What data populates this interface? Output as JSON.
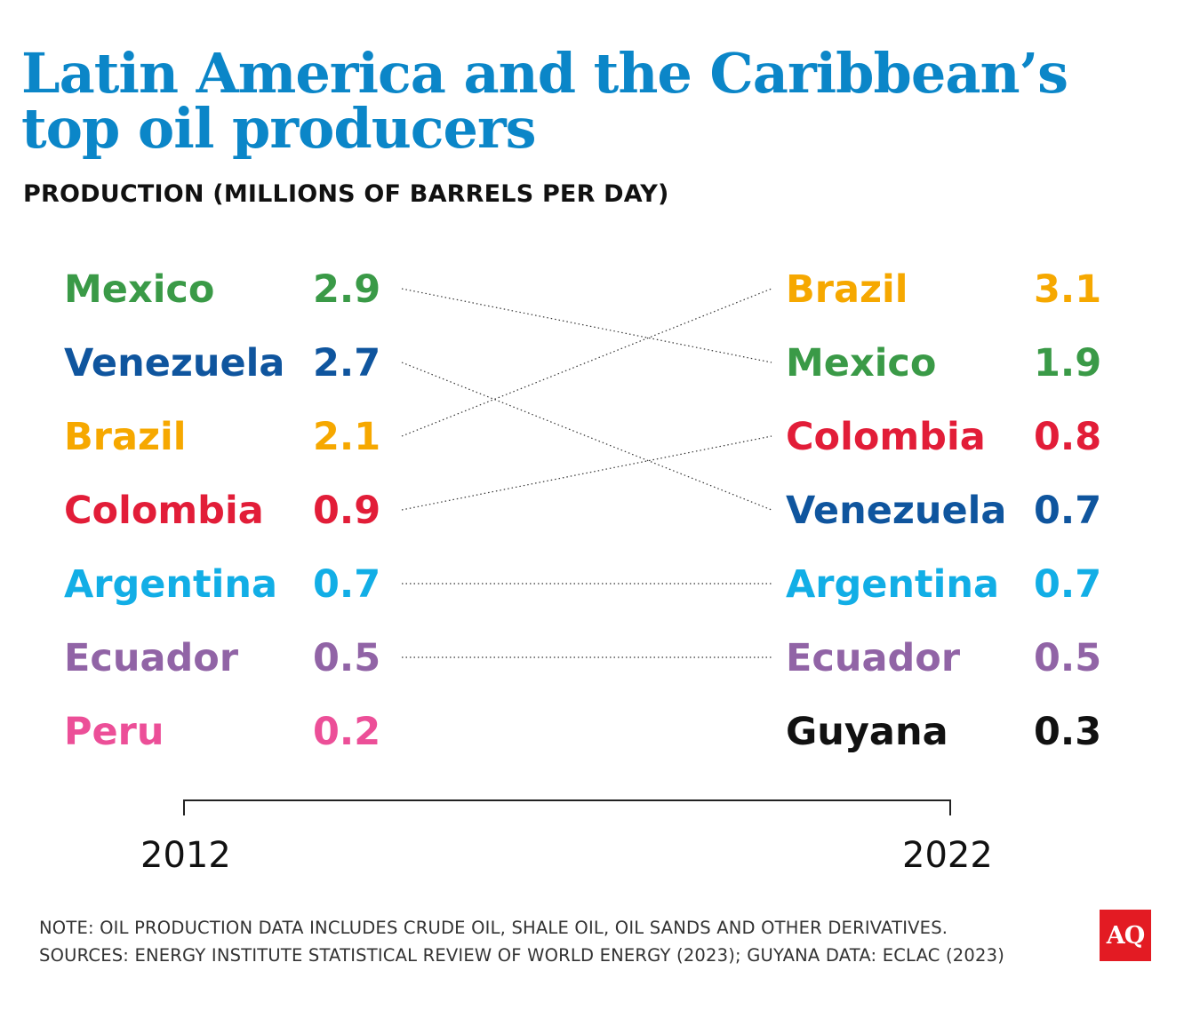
{
  "title": "Latin America and the Caribbean’s top oil producers",
  "subtitle": "PRODUCTION (MILLIONS OF BARRELS PER DAY)",
  "chart_data": {
    "type": "slope",
    "title": "Latin America and the Caribbean’s top oil producers",
    "ylabel": "PRODUCTION (MILLIONS OF BARRELS PER DAY)",
    "years": [
      "2012",
      "2022"
    ],
    "left": [
      {
        "country": "Mexico",
        "value": "2.9",
        "color": "#3a9a47"
      },
      {
        "country": "Venezuela",
        "value": "2.7",
        "color": "#0f559e"
      },
      {
        "country": "Brazil",
        "value": "2.1",
        "color": "#f6a800"
      },
      {
        "country": "Colombia",
        "value": "0.9",
        "color": "#e21d38"
      },
      {
        "country": "Argentina",
        "value": "0.7",
        "color": "#12aee6"
      },
      {
        "country": "Ecuador",
        "value": "0.5",
        "color": "#9164a6"
      },
      {
        "country": "Peru",
        "value": "0.2",
        "color": "#ec4f98"
      }
    ],
    "right": [
      {
        "country": "Brazil",
        "value": "3.1",
        "color": "#f6a800"
      },
      {
        "country": "Mexico",
        "value": "1.9",
        "color": "#3a9a47"
      },
      {
        "country": "Colombia",
        "value": "0.8",
        "color": "#e21d38"
      },
      {
        "country": "Venezuela",
        "value": "0.7",
        "color": "#0f559e"
      },
      {
        "country": "Argentina",
        "value": "0.7",
        "color": "#12aee6"
      },
      {
        "country": "Ecuador",
        "value": "0.5",
        "color": "#9164a6"
      },
      {
        "country": "Guyana",
        "value": "0.3",
        "color": "#111111"
      }
    ]
  },
  "footer": {
    "note": "NOTE: OIL PRODUCTION DATA INCLUDES CRUDE OIL, SHALE OIL, OIL SANDS AND OTHER DERIVATIVES.",
    "sources": "SOURCES: ENERGY INSTITUTE STATISTICAL REVIEW OF WORLD ENERGY (2023); GUYANA DATA: ECLAC (2023)",
    "logo": "AQ"
  }
}
